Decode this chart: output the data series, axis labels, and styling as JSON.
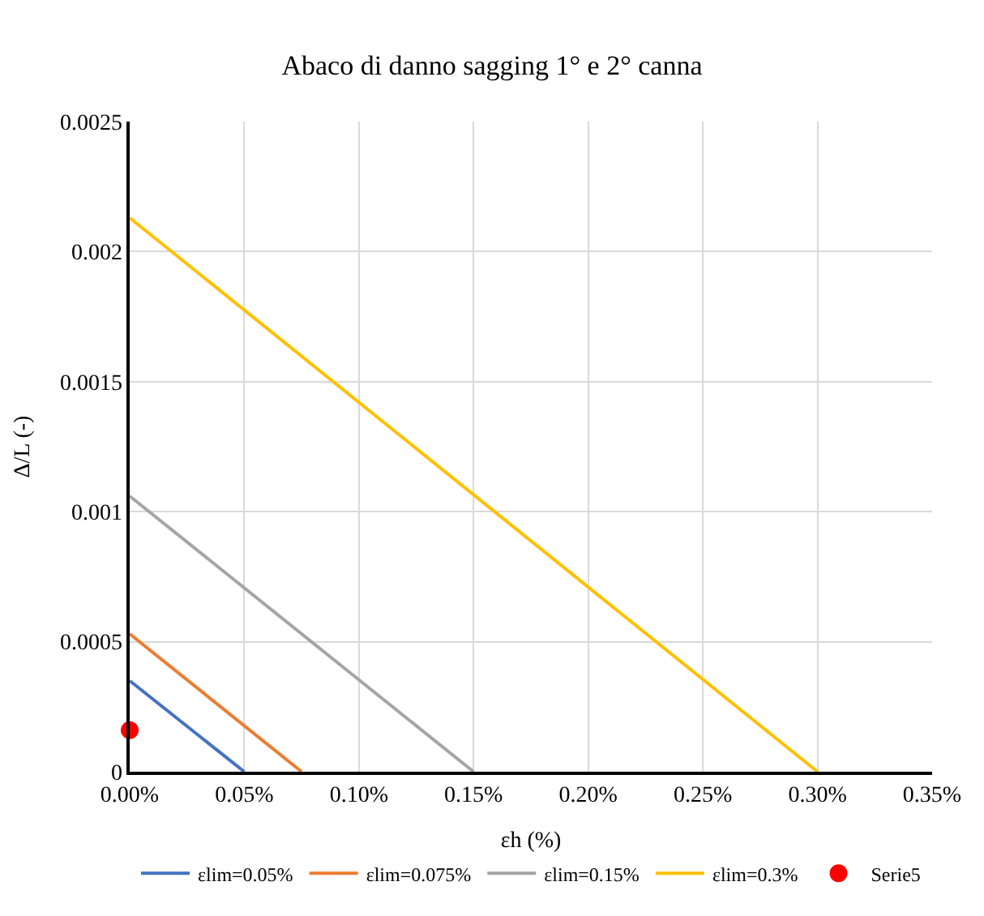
{
  "chart_data": {
    "type": "line",
    "title": "Abaco di danno sagging 1° e 2° canna",
    "xlabel": "εh (%)",
    "ylabel": "Δ/L (-)",
    "series": [
      {
        "name": "εlim=0.05%",
        "color": "#4472c4",
        "x": [
          0,
          0.05
        ],
        "values": [
          0.00035,
          0
        ]
      },
      {
        "name": "εlim=0.075%",
        "color": "#ed7d31",
        "x": [
          0,
          0.075
        ],
        "values": [
          0.00053,
          0
        ]
      },
      {
        "name": "εlim=0.15%",
        "color": "#a5a5a5",
        "x": [
          0,
          0.15
        ],
        "values": [
          0.00106,
          0
        ]
      },
      {
        "name": "εlim=0.3%",
        "color": "#ffc000",
        "x": [
          0,
          0.3
        ],
        "values": [
          0.00213,
          0
        ]
      },
      {
        "name": "Serie5",
        "type": "scatter",
        "marker": "circle",
        "color": "#ff0000",
        "x": [
          0
        ],
        "values": [
          0.00016
        ]
      }
    ],
    "xlim": [
      0,
      0.35
    ],
    "xticks": [
      {
        "value": 0,
        "label": "0.00%"
      },
      {
        "value": 0.05,
        "label": "0.05%"
      },
      {
        "value": 0.1,
        "label": "0.10%"
      },
      {
        "value": 0.15,
        "label": "0.15%"
      },
      {
        "value": 0.2,
        "label": "0.20%"
      },
      {
        "value": 0.25,
        "label": "0.25%"
      },
      {
        "value": 0.3,
        "label": "0.30%"
      },
      {
        "value": 0.35,
        "label": "0.35%"
      }
    ],
    "ylim": [
      0,
      0.0025
    ],
    "yticks": [
      0,
      0.0005,
      0.001,
      0.0015,
      0.002,
      0.0025
    ],
    "grid": true,
    "legend": "bottom",
    "marker": "none",
    "line_style": "solid"
  }
}
